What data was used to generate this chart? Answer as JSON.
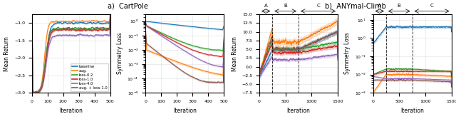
{
  "title_left": "a)  CartPole",
  "title_right": "b)  ANYmal-Climb",
  "colors": {
    "baseline": "#1f77b4",
    "aug": "#ff7f0e",
    "loss02": "#2ca02c",
    "loss10": "#d62728",
    "loss40": "#9467bd",
    "aug_loss10": "#8c564b"
  },
  "legend_labels": [
    "baseline",
    "aug.",
    "loss-0.2",
    "loss-1.0",
    "loss-4.0",
    "aug. + loss-1.0"
  ],
  "cartpole_xlim": [
    0,
    500
  ],
  "cartpole_ylim_return": [
    -3.0,
    -0.75
  ],
  "cartpole_ylim_loss_min": 1e-05,
  "cartpole_ylim_loss_max": 3,
  "anymal_xlim": [
    0,
    1500
  ],
  "anymal_ylim_return": [
    -7.5,
    15.0
  ],
  "anymal_ylim_loss_min": 0.001,
  "anymal_ylim_loss_max": 20,
  "anymal_vlines": [
    250,
    750
  ],
  "anymal_sections": [
    "A",
    "B",
    "C"
  ],
  "xlabel": "Iteration",
  "ylabel_return": "Mean Return",
  "ylabel_loss": "Symmetry Loss"
}
